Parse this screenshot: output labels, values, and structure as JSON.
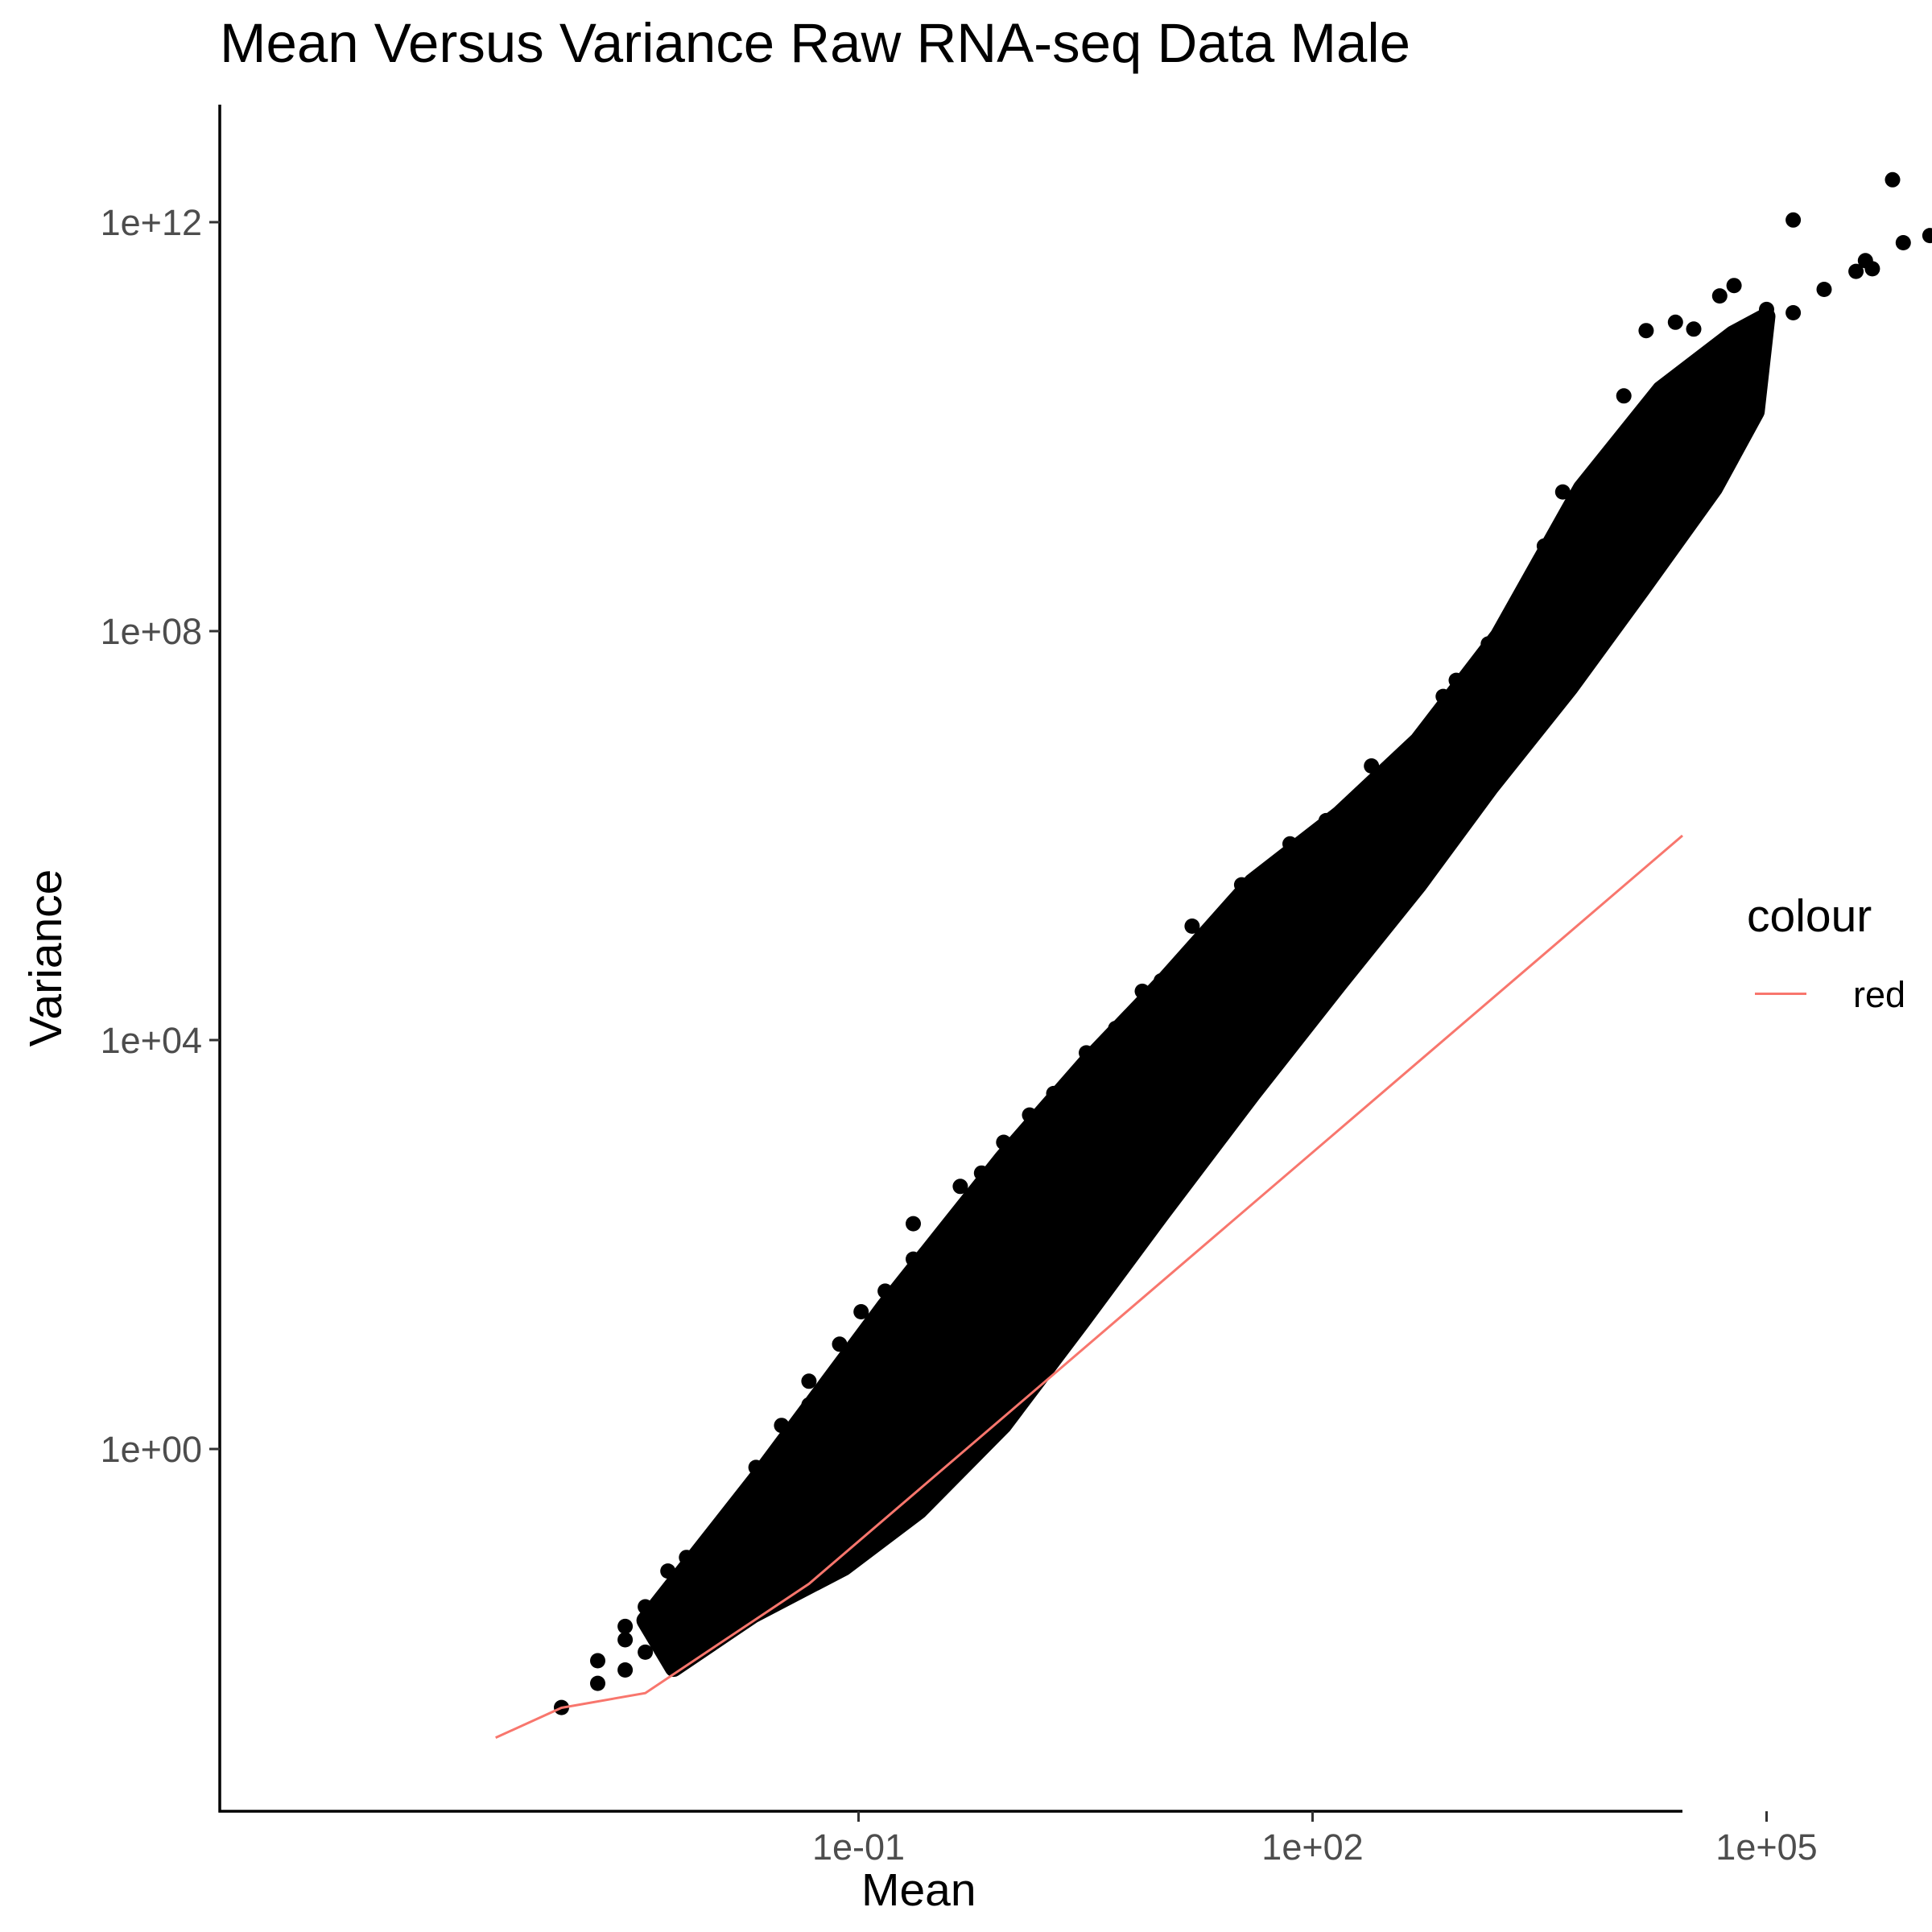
{
  "chart_data": {
    "type": "scatter",
    "title": "Mean Versus Variance Raw RNA-seq Data Male",
    "xlabel": "Mean",
    "ylabel": "Variance",
    "x_scale": "log10",
    "y_scale": "log10",
    "xlim": [
      0.0004,
      1600000.0
    ],
    "ylim": [
      0.0015,
      10000000000000.0
    ],
    "x_ticks": [
      0.1,
      100,
      100000
    ],
    "x_tick_labels": [
      "1e-01",
      "1e+02",
      "1e+05"
    ],
    "y_ticks": [
      1,
      10000,
      100000000,
      1000000000000
    ],
    "y_tick_labels": [
      "1e+00",
      "1e+04",
      "1e+08",
      "1e+12"
    ],
    "grid": false,
    "point_color": "#000000",
    "series": [
      {
        "kind": "points",
        "points": [
          [
            0.00109,
            0.00296
          ],
          [
            0.00189,
            0.0051
          ],
          [
            0.00189,
            0.0085
          ],
          [
            0.00287,
            0.0069
          ],
          [
            0.00287,
            0.0136
          ],
          [
            0.00287,
            0.0184
          ],
          [
            0.0039,
            0.0103
          ],
          [
            0.0039,
            0.0213
          ],
          [
            0.0039,
            0.0286
          ],
          [
            0.0055,
            0.0285
          ],
          [
            0.0055,
            0.064
          ],
          [
            0.0073,
            0.087
          ],
          [
            0.0104,
            0.132
          ],
          [
            0.0145,
            0.205
          ],
          [
            0.021,
            0.34
          ],
          [
            0.021,
            0.66
          ],
          [
            0.031,
            1.1
          ],
          [
            0.031,
            1.7
          ],
          [
            0.047,
            2.7
          ],
          [
            0.047,
            4.6
          ],
          [
            0.075,
            10.6
          ],
          [
            0.104,
            22
          ],
          [
            0.15,
            35
          ],
          [
            0.23,
            72
          ],
          [
            0.23,
            160
          ],
          [
            0.47,
            370
          ],
          [
            0.65,
            500
          ],
          [
            0.91,
            1000
          ],
          [
            1.35,
            1850
          ],
          [
            1.95,
            3000
          ],
          [
            3.2,
            7500
          ],
          [
            5.0,
            13000
          ],
          [
            7.5,
            30000
          ],
          [
            10,
            38000
          ],
          [
            16,
            130000.0
          ],
          [
            34,
            330000.0
          ],
          [
            71,
            830000.0
          ],
          [
            123,
            1400000.0
          ],
          [
            245,
            4800000.0
          ],
          [
            470,
            8000000.0
          ],
          [
            730,
            23000000.0
          ],
          [
            890,
            33000000.0
          ],
          [
            1450,
            75000000.0
          ],
          [
            2350,
            160000000.0
          ],
          [
            2800,
            190000000.0
          ],
          [
            3400,
            680000000.0
          ],
          [
            4500,
            2300000000.0
          ],
          [
            7900,
            3400000000.0
          ],
          [
            11400,
            20000000000.0
          ],
          [
            16000,
            87000000000.0
          ],
          [
            25000,
            105000000000.0
          ],
          [
            33000,
            90000000000.0
          ],
          [
            49000,
            190000000000.0
          ],
          [
            61000,
            240000000000.0
          ],
          [
            100000,
            140000000000.0
          ],
          [
            150000,
            130000000000.0
          ],
          [
            240000,
            220000000000.0
          ],
          [
            500000,
            350000000000.0
          ],
          [
            390000,
            330000000000.0
          ],
          [
            800000,
            630000000000.0
          ],
          [
            450000,
            420000000000.0
          ],
          [
            150000,
            1050000000000.0
          ],
          [
            680000,
            2600000000000.0
          ],
          [
            1200000,
            740000000000.0
          ]
        ]
      },
      {
        "name": "red",
        "kind": "line",
        "color": "#f8766d",
        "x": [
          0.0004,
          0.00109,
          0.0039,
          0.047,
          1000000
        ],
        "y": [
          0.0015,
          0.00294,
          0.0041,
          0.048,
          1000000
        ]
      }
    ],
    "legend": {
      "title": "colour",
      "position": "right",
      "entries": [
        "red"
      ]
    }
  }
}
